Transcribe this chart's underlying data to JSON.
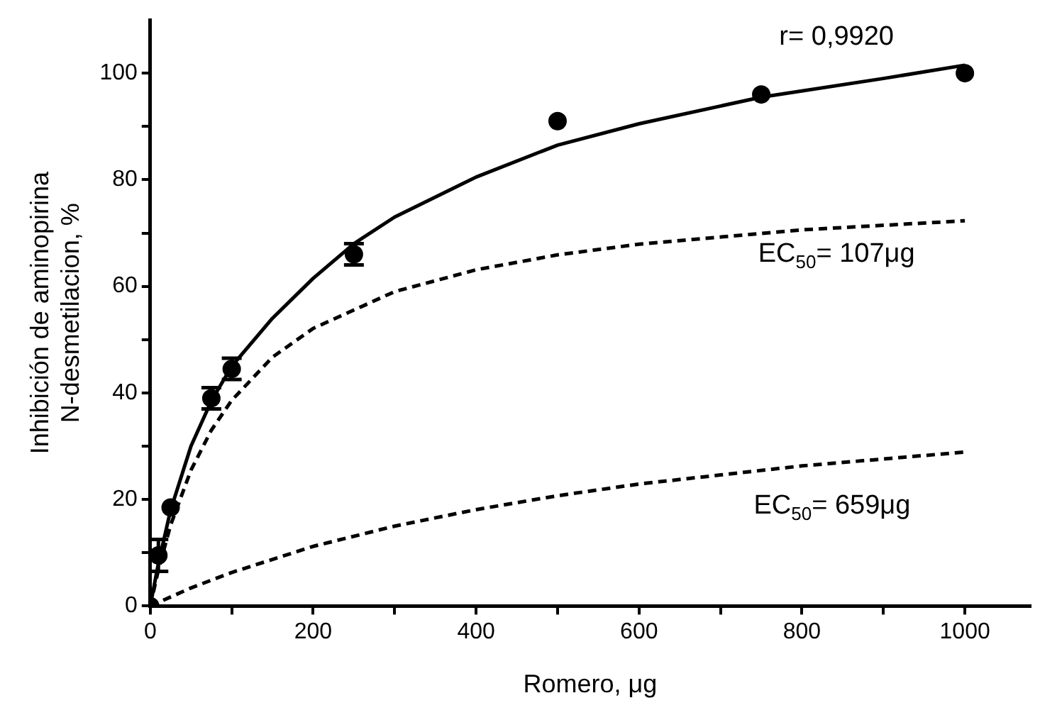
{
  "chart_data": {
    "type": "scatter",
    "xlabel": "Romero, μg",
    "ylabel": "Inhibición de aminopirina\nN-desmetilacion, %",
    "xlim": [
      0,
      1080
    ],
    "xticks": [
      0,
      {
        "value": 100,
        "label": null
      },
      200,
      {
        "value": 300,
        "label": null
      },
      400,
      {
        "value": 500,
        "label": null
      },
      600,
      {
        "value": 700,
        "label": null
      },
      800,
      {
        "value": 900,
        "label": null
      },
      1000
    ],
    "ylim": [
      0,
      110
    ],
    "yticks": [
      0,
      {
        "value": 10,
        "label": null
      },
      20,
      {
        "value": 30,
        "label": null
      },
      40,
      {
        "value": 50,
        "label": null
      },
      60,
      {
        "value": 70,
        "label": null
      },
      80,
      {
        "value": 90,
        "label": null
      },
      100
    ],
    "grid": false,
    "legend": false,
    "series": [
      {
        "color": "#000000",
        "marker": "circle",
        "x": [
          0,
          10,
          25,
          75,
          100,
          250,
          500,
          750,
          1000
        ],
        "values": [
          0,
          9.5,
          18.5,
          39,
          44.5,
          66,
          91,
          96,
          100
        ],
        "errors": [
          null,
          3,
          null,
          2,
          2,
          2,
          null,
          null,
          null
        ]
      },
      {
        "type": "line",
        "color": "#000000",
        "marker": "none",
        "line_style": "solid",
        "x": [
          0,
          10,
          25,
          50,
          75,
          100,
          150,
          200,
          250,
          300,
          400,
          500,
          600,
          750,
          900,
          1000
        ],
        "values": [
          0,
          8,
          18,
          30,
          38.5,
          45,
          54,
          61.5,
          68,
          73,
          80.5,
          86.5,
          90.5,
          95.5,
          99,
          101.5
        ]
      },
      {
        "type": "line",
        "color": "#000000",
        "marker": "none",
        "line_style": "dashed",
        "x": [
          0,
          10,
          25,
          50,
          75,
          100,
          150,
          200,
          300,
          400,
          500,
          600,
          800,
          1000
        ],
        "values": [
          0,
          6.8,
          15.2,
          25.5,
          33,
          38.6,
          46.7,
          52.1,
          59,
          63.1,
          65.9,
          67.9,
          70.6,
          72.3
        ]
      },
      {
        "type": "line",
        "color": "#000000",
        "marker": "none",
        "line_style": "dashed",
        "x": [
          0,
          50,
          100,
          200,
          300,
          400,
          500,
          600,
          800,
          1000
        ],
        "values": [
          0,
          3.4,
          6.3,
          11.2,
          15,
          18.1,
          20.7,
          22.9,
          26.3,
          28.9
        ]
      }
    ],
    "annotations": [
      "r= 0,9920",
      "EC$_{50}$= 107μg",
      "EC$_{50}$= 659μg"
    ]
  }
}
